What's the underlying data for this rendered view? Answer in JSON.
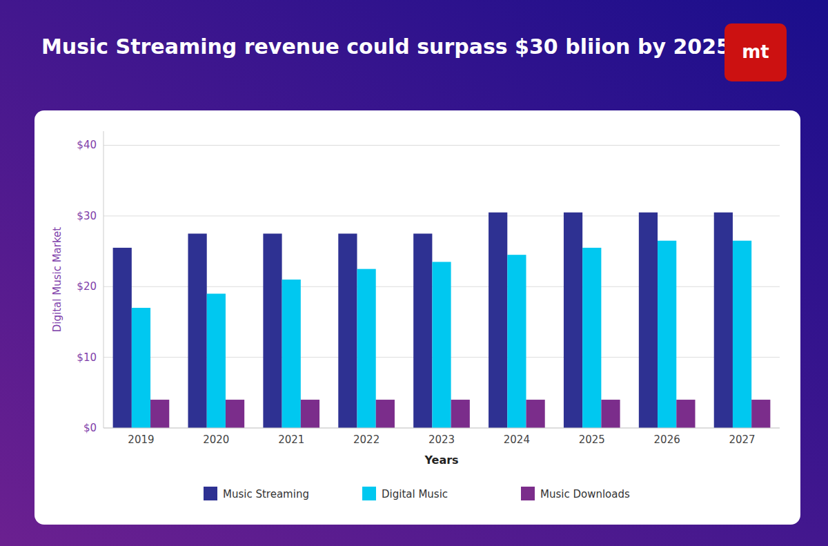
{
  "chart_data": {
    "type": "bar",
    "title": "Music Streaming revenue could surpass $30 bliion by 2025",
    "annotations": [
      "mt"
    ],
    "x_label": "Years",
    "y_label": "Digital Music Market",
    "categories": [
      "2019",
      "2020",
      "2021",
      "2022",
      "2023",
      "2024",
      "2025",
      "2026",
      "2027"
    ],
    "series": [
      {
        "name": "Music Streaming",
        "color": "#2E3192",
        "values": [
          25.5,
          27.5,
          27.5,
          27.5,
          27.5,
          30.5,
          30.5,
          30.5,
          30.5
        ]
      },
      {
        "name": "Digital Music",
        "color": "#00C8F0",
        "values": [
          17.0,
          19.0,
          21.0,
          22.5,
          23.5,
          24.5,
          25.5,
          26.5,
          26.5
        ]
      },
      {
        "name": "Music Downloads",
        "color": "#7B2D8B",
        "values": [
          4.0,
          4.0,
          4.0,
          4.0,
          4.0,
          4.0,
          4.0,
          4.0,
          4.0
        ]
      }
    ],
    "ylim": [
      0,
      42
    ],
    "yticks": [
      {
        "value": 0,
        "label": "$0"
      },
      {
        "value": 10,
        "label": "$10"
      },
      {
        "value": 20,
        "label": "$20"
      },
      {
        "value": 30,
        "label": "$30"
      },
      {
        "value": 40,
        "label": "$40"
      }
    ],
    "grid": true,
    "legend": "bottom"
  }
}
